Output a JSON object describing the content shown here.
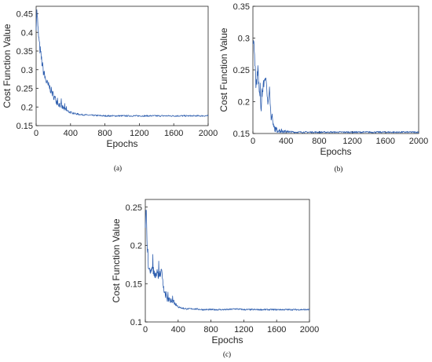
{
  "chart_data": [
    {
      "type": "line",
      "caption": "(a)",
      "xlabel": "Epochs",
      "ylabel": "Cost Function Value",
      "xlim": [
        0,
        2000
      ],
      "ylim": [
        0.15,
        0.47
      ],
      "xticks": [
        0,
        400,
        800,
        1200,
        1600,
        2000
      ],
      "yticks": [
        0.15,
        0.2,
        0.25,
        0.3,
        0.35,
        0.4,
        0.45
      ],
      "ytick_labels": [
        "0.15",
        "0.2",
        "0.25",
        "0.3",
        "0.35",
        "0.4",
        "0.45"
      ],
      "grid": false,
      "color": "#2f5faf",
      "series": [
        {
          "x": [
            0,
            10,
            20,
            40,
            60,
            80,
            100,
            130,
            160,
            200,
            250,
            300,
            350,
            400,
            450,
            500,
            600,
            700,
            800,
            1000,
            1200,
            1400,
            1600,
            1800,
            2000
          ],
          "values": [
            0.42,
            0.46,
            0.41,
            0.36,
            0.33,
            0.3,
            0.28,
            0.26,
            0.25,
            0.23,
            0.21,
            0.2,
            0.19,
            0.185,
            0.182,
            0.18,
            0.178,
            0.177,
            0.176,
            0.176,
            0.176,
            0.176,
            0.176,
            0.176,
            0.176
          ]
        }
      ]
    },
    {
      "type": "line",
      "caption": "(b)",
      "xlabel": "Epochs",
      "ylabel": "Cost Function Value",
      "xlim": [
        0,
        2000
      ],
      "ylim": [
        0.15,
        0.35
      ],
      "xticks": [
        0,
        400,
        800,
        1200,
        1600,
        2000
      ],
      "yticks": [
        0.15,
        0.2,
        0.25,
        0.3,
        0.35
      ],
      "ytick_labels": [
        "0.15",
        "0.2",
        "0.25",
        "0.3",
        "0.35"
      ],
      "grid": false,
      "color": "#2f5faf",
      "series": [
        {
          "x": [
            0,
            10,
            20,
            40,
            60,
            80,
            100,
            120,
            150,
            180,
            200,
            220,
            250,
            280,
            300,
            350,
            400,
            500,
            600,
            800,
            1000,
            1200,
            1400,
            1600,
            1800,
            2000
          ],
          "values": [
            0.28,
            0.31,
            0.27,
            0.22,
            0.25,
            0.21,
            0.19,
            0.22,
            0.24,
            0.2,
            0.22,
            0.17,
            0.16,
            0.155,
            0.155,
            0.153,
            0.153,
            0.152,
            0.152,
            0.152,
            0.152,
            0.152,
            0.152,
            0.152,
            0.152,
            0.152
          ]
        }
      ]
    },
    {
      "type": "line",
      "caption": "(c)",
      "xlabel": "Epochs",
      "ylabel": "Cost Function Value",
      "xlim": [
        0,
        2000
      ],
      "ylim": [
        0.1,
        0.26
      ],
      "xticks": [
        0,
        400,
        800,
        1200,
        1600,
        2000
      ],
      "yticks": [
        0.1,
        0.15,
        0.2,
        0.25
      ],
      "ytick_labels": [
        "0.1",
        "0.15",
        "0.2",
        "0.25"
      ],
      "grid": false,
      "color": "#2f5faf",
      "series": [
        {
          "x": [
            0,
            10,
            20,
            40,
            60,
            80,
            100,
            150,
            200,
            230,
            260,
            300,
            350,
            400,
            450,
            500,
            600,
            700,
            800,
            1000,
            1100,
            1200,
            1400,
            1600,
            1800,
            2000
          ],
          "values": [
            0.22,
            0.255,
            0.2,
            0.17,
            0.16,
            0.17,
            0.165,
            0.16,
            0.165,
            0.14,
            0.13,
            0.128,
            0.125,
            0.12,
            0.118,
            0.117,
            0.117,
            0.116,
            0.116,
            0.116,
            0.117,
            0.116,
            0.116,
            0.116,
            0.116,
            0.116
          ]
        }
      ]
    }
  ]
}
